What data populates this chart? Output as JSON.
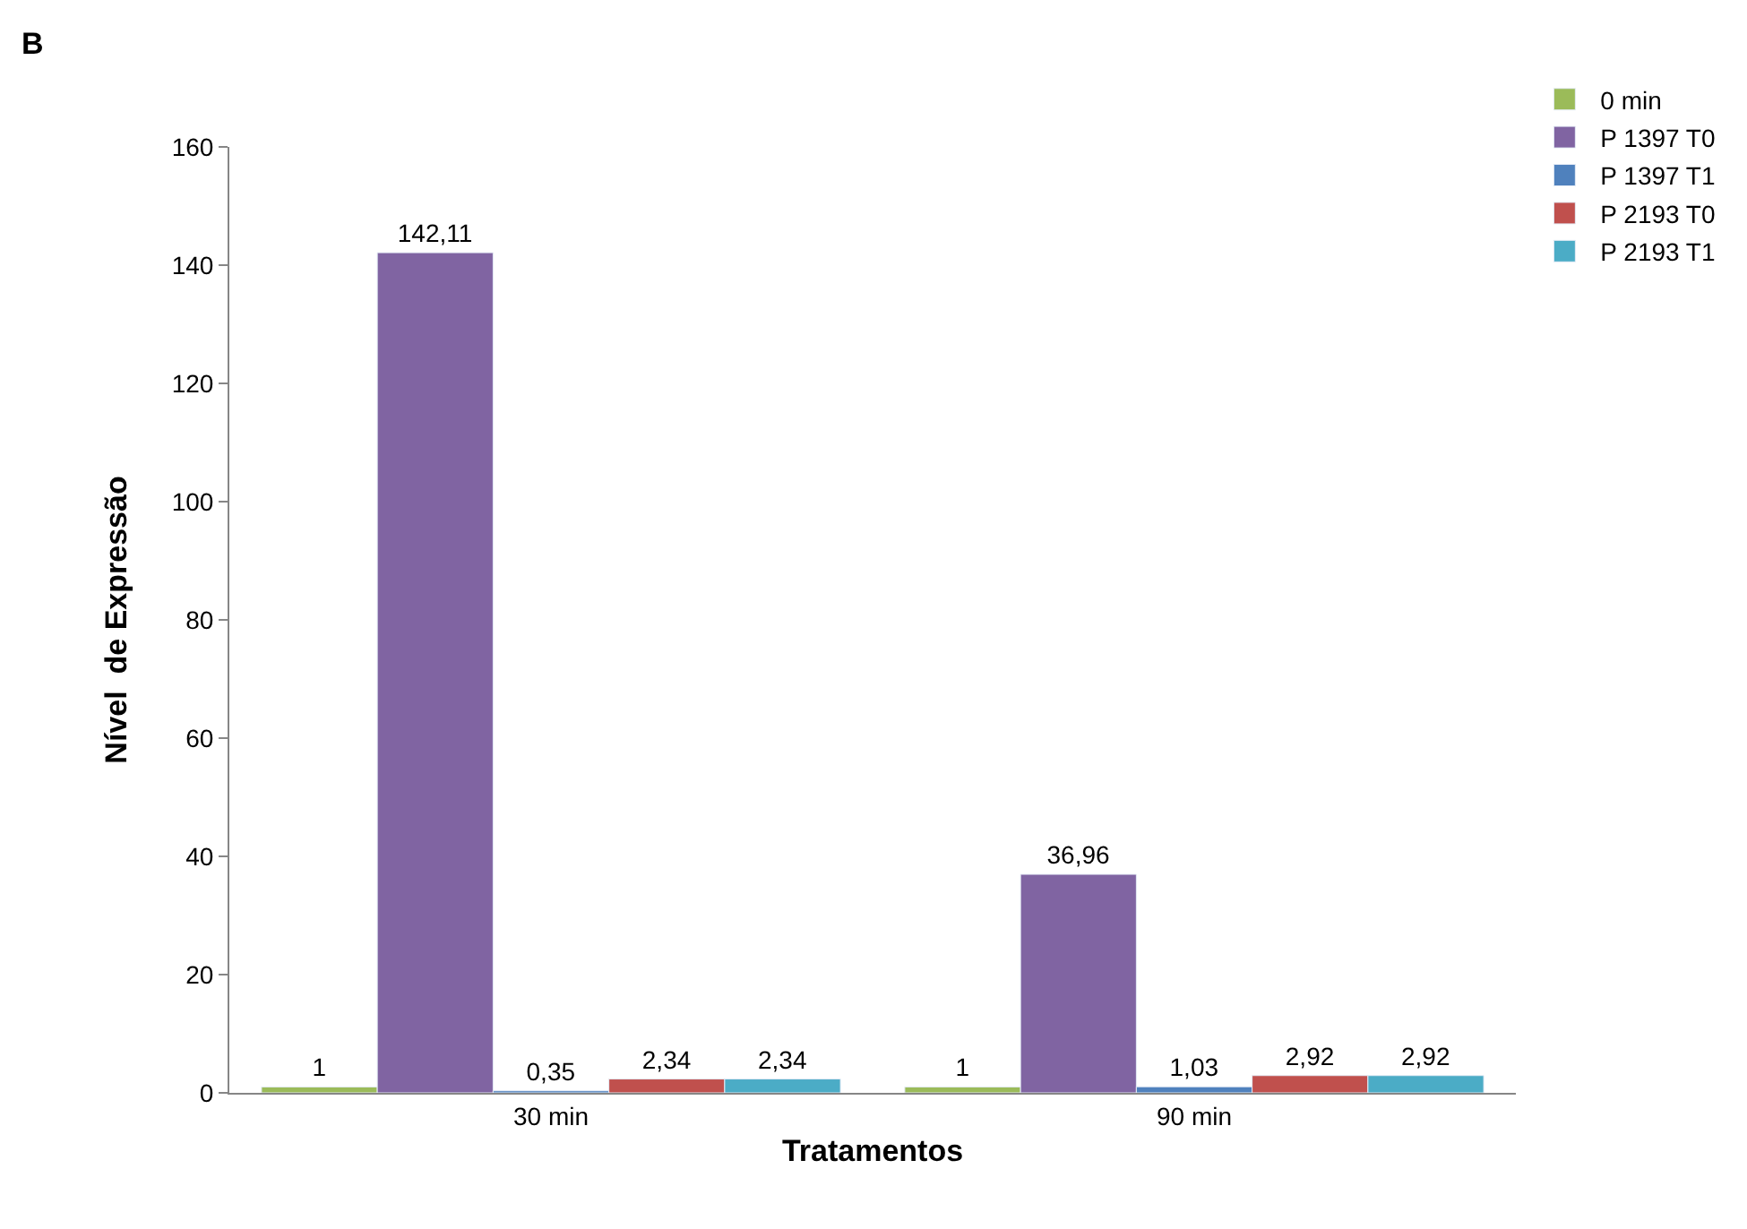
{
  "chart_data": {
    "type": "bar",
    "xlabel": "Tratamentos",
    "ylabel": "Nível  de Expressão",
    "annotations": [
      "B"
    ],
    "categories": [
      "30 min",
      "90 min"
    ],
    "series": [
      {
        "name": "0 min",
        "color": "#9bbb59",
        "values": [
          1,
          1
        ],
        "value_labels": [
          "1",
          "1"
        ]
      },
      {
        "name": "P 1397 T0",
        "color": "#8064a2",
        "values": [
          142.11,
          36.96
        ],
        "value_labels": [
          "142,11",
          "36,96"
        ]
      },
      {
        "name": "P 1397 T1",
        "color": "#4f81bd",
        "values": [
          0.35,
          1.03
        ],
        "value_labels": [
          "0,35",
          "1,03"
        ]
      },
      {
        "name": "P 2193 T0",
        "color": "#c0504d",
        "values": [
          2.34,
          2.92
        ],
        "value_labels": [
          "2,34",
          "2,92"
        ]
      },
      {
        "name": "P 2193 T1",
        "color": "#4bacc6",
        "values": [
          2.34,
          2.92
        ],
        "value_labels": [
          "2,34",
          "2,92"
        ]
      }
    ],
    "ylim": [
      0,
      160
    ],
    "yticks": [
      0,
      20,
      40,
      60,
      80,
      100,
      120,
      140,
      160
    ],
    "legend": "top right"
  }
}
